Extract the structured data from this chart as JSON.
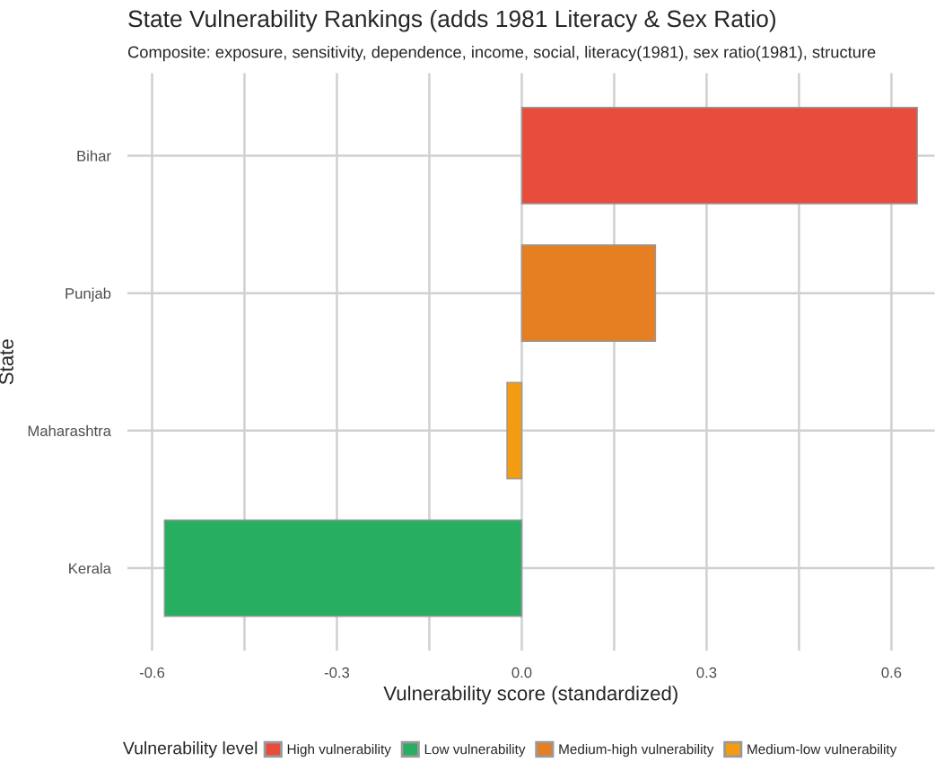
{
  "chart_data": {
    "type": "bar",
    "orientation": "horizontal",
    "title": "State Vulnerability Rankings (adds 1981 Literacy & Sex Ratio)",
    "subtitle": "Composite: exposure, sensitivity, dependence, income, social, literacy(1981), sex ratio(1981), structure",
    "xlabel": "Vulnerability score (standardized)",
    "ylabel": "State",
    "legend_title": "Vulnerability level",
    "categories": [
      "Bihar",
      "Punjab",
      "Maharashtra",
      "Kerala"
    ],
    "series": [
      {
        "name": "High vulnerability",
        "color": "#e74c3c",
        "values": [
          0.642,
          null,
          null,
          null
        ]
      },
      {
        "name": "Low vulnerability",
        "color": "#27ae60",
        "values": [
          null,
          null,
          null,
          -0.58
        ]
      },
      {
        "name": "Medium-high vulnerability",
        "color": "#e67e22",
        "values": [
          null,
          0.217,
          null,
          null
        ]
      },
      {
        "name": "Medium-low vulnerability",
        "color": "#f39c12",
        "values": [
          null,
          null,
          -0.024,
          null
        ]
      }
    ],
    "xlim": [
      -0.64,
      0.67
    ],
    "xticks": [
      {
        "value": -0.6,
        "label": "-0.6"
      },
      {
        "value": -0.45,
        "label": null
      },
      {
        "value": -0.3,
        "label": "-0.3"
      },
      {
        "value": -0.15,
        "label": null
      },
      {
        "value": 0.0,
        "label": "0.0"
      },
      {
        "value": 0.15,
        "label": null
      },
      {
        "value": 0.3,
        "label": "0.3"
      },
      {
        "value": 0.45,
        "label": null
      },
      {
        "value": 0.6,
        "label": "0.6"
      }
    ],
    "grid": true,
    "legend": "bottom"
  }
}
